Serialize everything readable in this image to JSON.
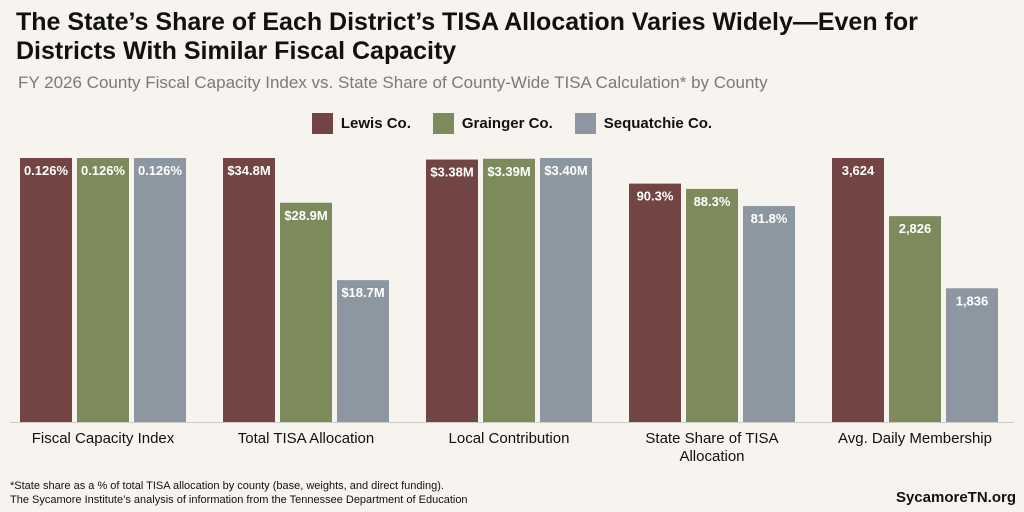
{
  "header": {
    "title": "The State’s Share of Each District’s TISA Allocation Varies Widely—Even for Districts With Similar Fiscal Capacity",
    "subtitle": "FY 2026 County Fiscal Capacity Index vs. State Share of County-Wide TISA Calculation* by County"
  },
  "footer": {
    "note": "*State share as a % of total TISA allocation by county (base, weights, and direct funding).",
    "source": "The Sycamore Institute’s analysis of information from the Tennessee Department of Education",
    "brand": "SycamoreTN.org"
  },
  "colors": {
    "lewis": "#724443",
    "grainger": "#7c8a5c",
    "sequatchie": "#8c97a1",
    "background": "#f7f3ef"
  },
  "chart_data": {
    "type": "bar",
    "title": "The State’s Share of Each District’s TISA Allocation Varies Widely—Even for Districts With Similar Fiscal Capacity",
    "subtitle": "FY 2026 County Fiscal Capacity Index vs. State Share of County-Wide TISA Calculation* by County",
    "legend_position": "top-center",
    "grid": false,
    "series_names": [
      "Lewis Co.",
      "Grainger Co.",
      "Sequatchie Co."
    ],
    "series_colors": [
      "#724443",
      "#7c8a5c",
      "#8c97a1"
    ],
    "groups": [
      {
        "category": [
          "Fiscal Capacity Index"
        ],
        "unit": "%",
        "max": 0.126,
        "values": [
          0.126,
          0.126,
          0.126
        ],
        "labels": [
          "0.126%",
          "0.126%",
          "0.126%"
        ]
      },
      {
        "category": [
          "Total TISA Allocation"
        ],
        "unit": "$M",
        "max": 34.8,
        "values": [
          34.8,
          28.9,
          18.7
        ],
        "labels": [
          "$34.8M",
          "$28.9M",
          "$18.7M"
        ]
      },
      {
        "category": [
          "Local Contribution"
        ],
        "unit": "$M",
        "max": 3.4,
        "values": [
          3.38,
          3.39,
          3.4
        ],
        "labels": [
          "$3.38M",
          "$3.39M",
          "$3.40M"
        ]
      },
      {
        "category": [
          "State Share of TISA",
          "Allocation"
        ],
        "unit": "%",
        "max": 100,
        "values": [
          90.3,
          88.3,
          81.8
        ],
        "labels": [
          "90.3%",
          "88.3%",
          "81.8%"
        ]
      },
      {
        "category": [
          "Avg. Daily Membership"
        ],
        "unit": "students",
        "max": 3624,
        "values": [
          3624,
          2826,
          1836
        ],
        "labels": [
          "3,624",
          "2,826",
          "1,836"
        ]
      }
    ]
  }
}
